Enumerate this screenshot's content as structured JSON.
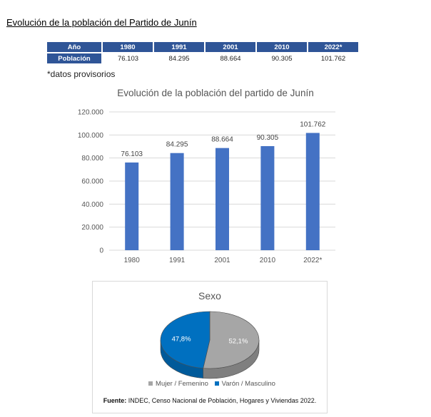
{
  "document": {
    "title": "Evolución de la población del Partido de Junín",
    "note": "*datos provisorios"
  },
  "table": {
    "header_label": "Año",
    "row_label": "Población",
    "years": [
      "1980",
      "1991",
      "2001",
      "2010",
      "2022*"
    ],
    "values": [
      "76.103",
      "84.295",
      "88.664",
      "90.305",
      "101.762"
    ]
  },
  "colors": {
    "bar": "#4472c4",
    "header": "#2f5597",
    "female": "#a6a6a6",
    "male": "#0070c0"
  },
  "chart_data": [
    {
      "type": "bar",
      "title": "Evolución de la población del partido de Junín",
      "categories": [
        "1980",
        "1991",
        "2001",
        "2010",
        "2022*"
      ],
      "values": [
        76103,
        84295,
        88664,
        90305,
        101762
      ],
      "value_labels": [
        "76.103",
        "84.295",
        "88.664",
        "90.305",
        "101.762"
      ],
      "ylim": [
        0,
        120000
      ],
      "yticks": [
        0,
        20000,
        40000,
        60000,
        80000,
        100000,
        120000
      ],
      "ytick_labels": [
        "0",
        "20.000",
        "40.000",
        "60.000",
        "80.000",
        "100.000",
        "120.000"
      ],
      "grid": true,
      "xlabel": "",
      "ylabel": ""
    },
    {
      "type": "pie",
      "title": "Sexo",
      "labels": [
        "Mujer / Femenino",
        "Varón / Masculino"
      ],
      "values": [
        52.1,
        47.8
      ],
      "value_labels": [
        "52,1%",
        "47,8%"
      ],
      "legend": "bottom"
    }
  ],
  "source": {
    "label": "Fuente:",
    "text": " INDEC, Censo Nacional de Población, Hogares y Viviendas 2022."
  }
}
